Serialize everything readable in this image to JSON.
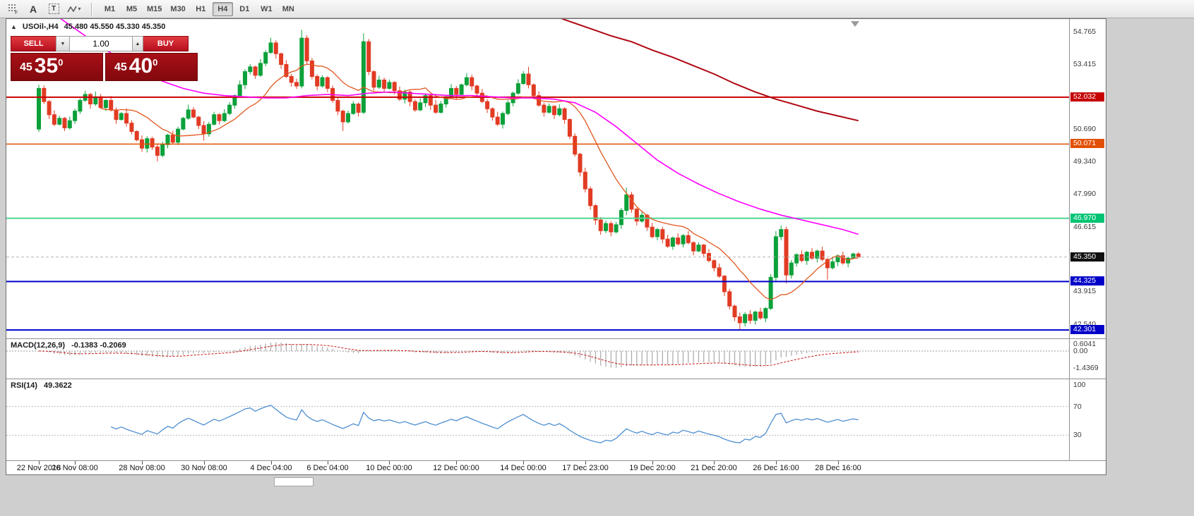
{
  "toolbar": {
    "timeframes": [
      "M1",
      "M5",
      "M15",
      "M30",
      "H1",
      "H4",
      "D1",
      "W1",
      "MN"
    ],
    "active": "H4",
    "tools": [
      "snap-grid",
      "text-label",
      "text-box",
      "shapes"
    ]
  },
  "header": {
    "symbol": "USOil-,H4",
    "ohlc": "45.480 45.550 45.330 45.350"
  },
  "trade": {
    "sell": "SELL",
    "buy": "BUY",
    "volume": "1.00",
    "bid_small": "45",
    "bid_big": "35",
    "bid_sup": "0",
    "ask_small": "45",
    "ask_big": "40",
    "ask_sup": "0"
  },
  "price_axis": {
    "plain": [
      "54.765",
      "53.415",
      "50.690",
      "49.340",
      "47.990",
      "46.615",
      "43.915",
      "42.540"
    ],
    "badges": [
      {
        "value": "52.032",
        "price": 52.032,
        "color": "#c60000"
      },
      {
        "value": "50.071",
        "price": 50.071,
        "color": "#e25005"
      },
      {
        "value": "46.970",
        "price": 46.97,
        "color": "#00c474"
      },
      {
        "value": "45.350",
        "price": 45.35,
        "color": "#101010"
      },
      {
        "value": "44.325",
        "price": 44.325,
        "color": "#0000c8"
      },
      {
        "value": "42.301",
        "price": 42.301,
        "color": "#0000c8"
      }
    ]
  },
  "hlines": [
    {
      "price": 52.032,
      "color": "#cc0000",
      "width": 2,
      "dash": ""
    },
    {
      "price": 50.071,
      "color": "#e25005",
      "width": 1.5,
      "dash": ""
    },
    {
      "price": 46.97,
      "color": "#4fd592",
      "width": 2,
      "dash": ""
    },
    {
      "price": 44.325,
      "color": "#0000cd",
      "width": 2,
      "dash": ""
    },
    {
      "price": 42.301,
      "color": "#0000cd",
      "width": 2,
      "dash": ""
    },
    {
      "price": 45.35,
      "color": "#b5b5b5",
      "width": 1,
      "dash": "4 3"
    }
  ],
  "time_axis": [
    {
      "label": "22 Nov 2018",
      "i": 1
    },
    {
      "label": "26 Nov 08:00",
      "i": 8
    },
    {
      "label": "28 Nov 08:00",
      "i": 21
    },
    {
      "label": "30 Nov 08:00",
      "i": 33
    },
    {
      "label": "4 Dec 04:00",
      "i": 46
    },
    {
      "label": "6 Dec 04:00",
      "i": 57
    },
    {
      "label": "10 Dec 00:00",
      "i": 69
    },
    {
      "label": "12 Dec 00:00",
      "i": 82
    },
    {
      "label": "14 Dec 00:00",
      "i": 95
    },
    {
      "label": "17 Dec 23:00",
      "i": 107
    },
    {
      "label": "19 Dec 20:00",
      "i": 120
    },
    {
      "label": "21 Dec 20:00",
      "i": 132
    },
    {
      "label": "26 Dec 16:00",
      "i": 144
    },
    {
      "label": "28 Dec 16:00",
      "i": 156
    }
  ],
  "macd": {
    "label": "MACD(12,26,9)",
    "values": "-0.1383 -0.2069",
    "axis_items": [
      {
        "label": "0.6041",
        "v": 0.6041
      },
      {
        "label": "0.00",
        "v": 0
      },
      {
        "label": "-1.4369",
        "v": -1.4369
      }
    ]
  },
  "rsi": {
    "label": "RSI(14)",
    "value": "49.3622",
    "axis_items": [
      {
        "label": "100",
        "v": 100
      },
      {
        "label": "70",
        "v": 70
      },
      {
        "label": "30",
        "v": 30
      }
    ],
    "levels": [
      70,
      30
    ]
  },
  "chart_data": {
    "type": "candlestick",
    "symbol": "USOil-",
    "timeframe": "H4",
    "price_axis_range": [
      42.1,
      55.3
    ],
    "up_color": "#0ca13a",
    "down_color": "#e13b23",
    "macd_params": [
      12,
      26,
      9
    ],
    "rsi_period": 14,
    "ma_fast": {
      "period": 13,
      "color": "#e0571f"
    },
    "ma_mid": {
      "color": "#ff00ff",
      "points": [
        [
          5,
          55.35
        ],
        [
          9,
          54.75
        ],
        [
          13,
          54.15
        ],
        [
          17,
          53.6
        ],
        [
          21,
          53.1
        ],
        [
          25,
          52.7
        ],
        [
          29,
          52.4
        ],
        [
          33,
          52.2
        ],
        [
          37,
          52.1
        ],
        [
          41,
          52.05
        ],
        [
          45,
          52.0
        ],
        [
          49,
          52.0
        ],
        [
          53,
          52.1
        ],
        [
          57,
          52.15
        ],
        [
          61,
          52.1
        ],
        [
          65,
          52.2
        ],
        [
          69,
          52.25
        ],
        [
          73,
          52.2
        ],
        [
          77,
          52.15
        ],
        [
          81,
          52.1
        ],
        [
          85,
          52.1
        ],
        [
          89,
          52.05
        ],
        [
          93,
          52.0
        ],
        [
          97,
          52.0
        ],
        [
          101,
          51.95
        ],
        [
          105,
          51.8
        ],
        [
          109,
          51.4
        ],
        [
          113,
          50.8
        ],
        [
          117,
          50.1
        ],
        [
          121,
          49.4
        ],
        [
          125,
          48.85
        ],
        [
          129,
          48.4
        ],
        [
          133,
          48.0
        ],
        [
          137,
          47.65
        ],
        [
          141,
          47.35
        ],
        [
          145,
          47.1
        ],
        [
          149,
          46.9
        ],
        [
          153,
          46.7
        ],
        [
          157,
          46.5
        ],
        [
          160,
          46.3
        ]
      ]
    },
    "ma_slow": {
      "color": "#b00712",
      "points": [
        [
          100,
          55.5
        ],
        [
          104,
          55.2
        ],
        [
          108,
          54.9
        ],
        [
          112,
          54.6
        ],
        [
          116,
          54.35
        ],
        [
          120,
          54.0
        ],
        [
          124,
          53.7
        ],
        [
          128,
          53.35
        ],
        [
          132,
          53.0
        ],
        [
          136,
          52.6
        ],
        [
          140,
          52.25
        ],
        [
          144,
          51.95
        ],
        [
          148,
          51.7
        ],
        [
          152,
          51.45
        ],
        [
          156,
          51.25
        ],
        [
          160,
          51.05
        ]
      ]
    },
    "ohlc": [
      [
        50.7,
        52.55,
        50.58,
        52.4
      ],
      [
        52.4,
        52.52,
        51.75,
        51.85
      ],
      [
        51.85,
        51.92,
        51.12,
        51.3
      ],
      [
        51.3,
        51.48,
        50.82,
        50.9
      ],
      [
        50.9,
        51.26,
        50.85,
        51.15
      ],
      [
        51.15,
        51.2,
        50.62,
        50.75
      ],
      [
        50.75,
        51.22,
        50.68,
        51.05
      ],
      [
        51.05,
        51.55,
        50.92,
        51.45
      ],
      [
        51.45,
        51.98,
        51.33,
        51.9
      ],
      [
        51.9,
        52.3,
        51.84,
        52.15
      ],
      [
        52.15,
        52.21,
        51.55,
        51.75
      ],
      [
        51.75,
        52.27,
        51.67,
        52.05
      ],
      [
        52.05,
        52.17,
        51.55,
        51.6
      ],
      [
        51.6,
        51.95,
        51.45,
        51.9
      ],
      [
        51.9,
        52.08,
        51.43,
        51.5
      ],
      [
        51.5,
        51.6,
        50.92,
        51.1
      ],
      [
        51.1,
        51.41,
        51.05,
        51.35
      ],
      [
        51.35,
        51.57,
        50.8,
        50.95
      ],
      [
        50.95,
        51.07,
        50.48,
        50.6
      ],
      [
        50.6,
        50.65,
        50.19,
        50.25
      ],
      [
        50.25,
        50.43,
        49.75,
        49.9
      ],
      [
        49.9,
        50.4,
        49.72,
        50.3
      ],
      [
        50.3,
        50.38,
        49.83,
        49.95
      ],
      [
        49.95,
        50.1,
        49.35,
        49.6
      ],
      [
        49.6,
        50.17,
        49.52,
        50.05
      ],
      [
        50.05,
        50.5,
        49.9,
        50.45
      ],
      [
        50.45,
        50.63,
        50.08,
        50.15
      ],
      [
        50.15,
        50.8,
        50.03,
        50.7
      ],
      [
        50.7,
        51.21,
        50.65,
        51.15
      ],
      [
        51.15,
        51.72,
        51.08,
        51.5
      ],
      [
        51.5,
        51.62,
        51.15,
        51.2
      ],
      [
        51.2,
        51.25,
        50.7,
        50.85
      ],
      [
        50.85,
        51.03,
        50.22,
        50.5
      ],
      [
        50.5,
        51.0,
        50.38,
        50.9
      ],
      [
        50.9,
        51.42,
        50.85,
        51.3
      ],
      [
        51.3,
        51.36,
        50.9,
        51.05
      ],
      [
        51.05,
        51.53,
        50.98,
        51.35
      ],
      [
        51.35,
        51.82,
        51.28,
        51.7
      ],
      [
        51.7,
        52.15,
        51.55,
        52.1
      ],
      [
        52.1,
        52.73,
        52.03,
        52.55
      ],
      [
        52.55,
        53.2,
        52.37,
        53.1
      ],
      [
        53.1,
        53.42,
        52.98,
        53.3
      ],
      [
        53.3,
        53.35,
        52.8,
        52.95
      ],
      [
        52.95,
        53.63,
        52.88,
        53.45
      ],
      [
        53.45,
        54.0,
        53.33,
        53.9
      ],
      [
        53.9,
        54.52,
        53.84,
        54.3
      ],
      [
        54.3,
        54.41,
        53.65,
        53.85
      ],
      [
        53.85,
        53.9,
        53.22,
        53.4
      ],
      [
        53.4,
        53.58,
        52.83,
        52.9
      ],
      [
        52.9,
        53.0,
        52.47,
        52.65
      ],
      [
        52.65,
        52.8,
        52.38,
        52.5
      ],
      [
        52.5,
        54.85,
        52.4,
        54.5
      ],
      [
        54.5,
        54.62,
        53.4,
        53.55
      ],
      [
        53.55,
        53.67,
        52.78,
        52.9
      ],
      [
        52.9,
        52.98,
        52.32,
        52.5
      ],
      [
        52.5,
        52.95,
        52.44,
        52.85
      ],
      [
        52.85,
        52.91,
        52.25,
        52.4
      ],
      [
        52.4,
        52.52,
        51.8,
        51.9
      ],
      [
        51.9,
        52.0,
        51.28,
        51.45
      ],
      [
        51.45,
        51.51,
        50.62,
        51.0
      ],
      [
        51.0,
        51.47,
        50.93,
        51.35
      ],
      [
        51.35,
        51.87,
        51.3,
        51.75
      ],
      [
        51.75,
        51.81,
        51.22,
        51.4
      ],
      [
        51.4,
        54.7,
        51.33,
        54.35
      ],
      [
        54.35,
        54.47,
        52.95,
        53.1
      ],
      [
        53.1,
        53.16,
        52.3,
        52.45
      ],
      [
        52.45,
        52.93,
        52.38,
        52.75
      ],
      [
        52.75,
        52.85,
        52.22,
        52.4
      ],
      [
        52.4,
        52.77,
        52.35,
        52.65
      ],
      [
        52.65,
        52.7,
        52.15,
        52.3
      ],
      [
        52.3,
        52.48,
        51.88,
        51.95
      ],
      [
        51.95,
        52.35,
        51.77,
        52.25
      ],
      [
        52.25,
        52.33,
        51.65,
        51.85
      ],
      [
        51.85,
        51.93,
        51.42,
        51.5
      ],
      [
        51.5,
        51.98,
        51.45,
        51.8
      ],
      [
        51.8,
        52.2,
        51.62,
        52.1
      ],
      [
        52.1,
        52.16,
        51.5,
        51.7
      ],
      [
        51.7,
        51.92,
        51.33,
        51.4
      ],
      [
        51.4,
        51.87,
        51.35,
        51.75
      ],
      [
        51.75,
        52.1,
        51.6,
        52.05
      ],
      [
        52.05,
        52.58,
        51.98,
        52.4
      ],
      [
        52.4,
        52.5,
        51.95,
        52.15
      ],
      [
        52.15,
        52.6,
        52.08,
        52.55
      ],
      [
        52.55,
        53.03,
        52.48,
        52.85
      ],
      [
        52.85,
        52.97,
        52.32,
        52.5
      ],
      [
        52.5,
        52.55,
        52.05,
        52.2
      ],
      [
        52.2,
        52.38,
        51.78,
        51.85
      ],
      [
        51.85,
        51.95,
        51.37,
        51.55
      ],
      [
        51.55,
        51.61,
        51.05,
        51.2
      ],
      [
        51.2,
        51.42,
        50.83,
        50.9
      ],
      [
        50.9,
        51.43,
        50.72,
        51.35
      ],
      [
        51.35,
        51.9,
        51.28,
        51.8
      ],
      [
        51.8,
        52.26,
        51.65,
        52.2
      ],
      [
        52.2,
        52.78,
        52.13,
        52.6
      ],
      [
        52.6,
        53.12,
        52.55,
        53.0
      ],
      [
        53.0,
        53.3,
        52.4,
        52.55
      ],
      [
        52.55,
        52.61,
        51.95,
        52.1
      ],
      [
        52.1,
        52.28,
        51.63,
        51.7
      ],
      [
        51.7,
        51.8,
        51.22,
        51.4
      ],
      [
        51.4,
        51.77,
        51.35,
        51.65
      ],
      [
        51.65,
        51.7,
        51.12,
        51.3
      ],
      [
        51.3,
        51.73,
        51.23,
        51.55
      ],
      [
        51.55,
        51.61,
        50.92,
        51.1
      ],
      [
        51.1,
        51.15,
        50.28,
        50.4
      ],
      [
        50.4,
        50.52,
        49.55,
        49.65
      ],
      [
        49.65,
        49.71,
        48.72,
        48.9
      ],
      [
        48.9,
        49.08,
        48.05,
        48.2
      ],
      [
        48.2,
        48.3,
        47.33,
        47.5
      ],
      [
        47.5,
        47.56,
        46.7,
        46.9
      ],
      [
        46.9,
        47.02,
        46.28,
        46.45
      ],
      [
        46.45,
        46.87,
        46.35,
        46.75
      ],
      [
        46.75,
        46.85,
        46.22,
        46.4
      ],
      [
        46.4,
        46.82,
        46.33,
        46.7
      ],
      [
        46.7,
        47.4,
        46.52,
        47.3
      ],
      [
        47.3,
        48.25,
        47.1,
        47.95
      ],
      [
        47.95,
        48.07,
        47.2,
        47.35
      ],
      [
        47.35,
        47.41,
        46.67,
        46.85
      ],
      [
        46.85,
        47.28,
        46.78,
        47.1
      ],
      [
        47.1,
        47.15,
        46.45,
        46.6
      ],
      [
        46.6,
        46.78,
        46.13,
        46.2
      ],
      [
        46.2,
        46.56,
        46.05,
        46.5
      ],
      [
        46.5,
        46.62,
        45.92,
        46.1
      ],
      [
        46.1,
        46.28,
        45.73,
        45.8
      ],
      [
        45.8,
        46.21,
        45.65,
        46.15
      ],
      [
        46.15,
        46.35,
        45.83,
        45.9
      ],
      [
        45.9,
        46.31,
        45.75,
        46.25
      ],
      [
        46.25,
        46.43,
        45.88,
        45.95
      ],
      [
        45.95,
        46.01,
        45.42,
        45.6
      ],
      [
        45.6,
        45.97,
        45.55,
        45.85
      ],
      [
        45.85,
        45.9,
        45.32,
        45.5
      ],
      [
        45.5,
        45.68,
        45.13,
        45.2
      ],
      [
        45.2,
        45.26,
        44.75,
        44.9
      ],
      [
        44.9,
        45.08,
        44.48,
        44.55
      ],
      [
        44.55,
        44.6,
        43.72,
        43.9
      ],
      [
        43.9,
        44.02,
        43.15,
        43.3
      ],
      [
        43.3,
        43.36,
        42.67,
        42.85
      ],
      [
        42.85,
        43.03,
        42.32,
        42.6
      ],
      [
        42.6,
        43.05,
        42.45,
        42.95
      ],
      [
        42.95,
        43.13,
        42.55,
        42.7
      ],
      [
        42.7,
        43.11,
        42.52,
        43.05
      ],
      [
        43.05,
        43.23,
        42.73,
        42.8
      ],
      [
        42.8,
        43.26,
        42.62,
        43.2
      ],
      [
        43.2,
        44.63,
        43.13,
        44.5
      ],
      [
        44.5,
        46.43,
        44.35,
        46.2
      ],
      [
        46.2,
        46.67,
        46.05,
        46.5
      ],
      [
        46.5,
        46.62,
        44.25,
        44.6
      ],
      [
        44.6,
        45.22,
        44.45,
        45.1
      ],
      [
        45.1,
        45.51,
        44.95,
        45.45
      ],
      [
        45.45,
        45.63,
        45.13,
        45.2
      ],
      [
        45.2,
        45.61,
        45.02,
        45.55
      ],
      [
        45.55,
        45.73,
        45.23,
        45.3
      ],
      [
        45.3,
        45.66,
        45.12,
        45.6
      ],
      [
        45.6,
        45.78,
        45.18,
        45.25
      ],
      [
        45.25,
        45.31,
        44.4,
        44.9
      ],
      [
        44.9,
        45.33,
        44.83,
        45.15
      ],
      [
        45.15,
        45.46,
        44.97,
        45.4
      ],
      [
        45.4,
        45.58,
        45.03,
        45.1
      ],
      [
        45.1,
        45.36,
        44.92,
        45.3
      ],
      [
        45.3,
        45.53,
        45.25,
        45.48
      ],
      [
        45.48,
        45.55,
        45.33,
        45.35
      ]
    ]
  }
}
